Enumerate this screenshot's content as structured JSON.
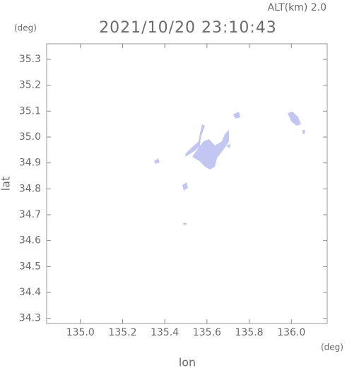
{
  "chart_data": {
    "type": "map",
    "title": "2021/10/20 23:10:43",
    "annotation": "ALT(km) 2.0",
    "y_unit": "(deg)",
    "x_unit": "(deg)",
    "xlabel": "lon",
    "ylabel": "lat",
    "xlim": [
      134.84,
      136.17
    ],
    "ylim": [
      34.28,
      35.36
    ],
    "xticks": [
      {
        "value": 135,
        "label": "135.0"
      },
      135.2,
      135.4,
      135.6,
      135.8,
      {
        "value": 136,
        "label": "136.0"
      }
    ],
    "yticks": [
      34.3,
      34.4,
      34.5,
      34.6,
      34.7,
      34.8,
      34.9,
      {
        "value": 35,
        "label": "35.0"
      },
      35.1,
      35.2,
      35.3
    ],
    "color": "#c4c6f2"
  }
}
